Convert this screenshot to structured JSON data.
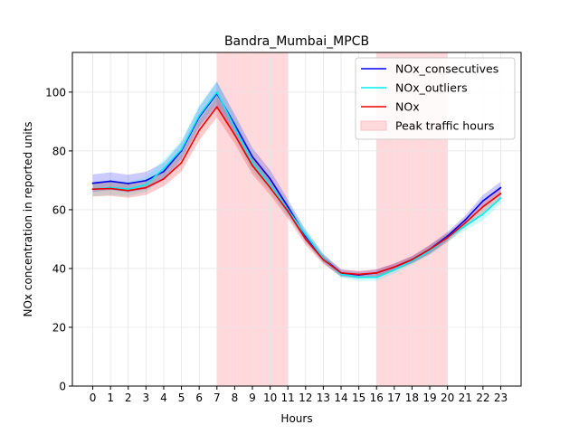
{
  "chart_data": {
    "type": "line",
    "title": "Bandra_Mumbai_MPCB",
    "xlabel": "Hours",
    "ylabel": "NOx concentration in reported units",
    "x": [
      0,
      1,
      2,
      3,
      4,
      5,
      6,
      7,
      8,
      9,
      10,
      11,
      12,
      13,
      14,
      15,
      16,
      17,
      18,
      19,
      20,
      21,
      22,
      23
    ],
    "xlim": [
      -1.15,
      24.15
    ],
    "ylim": [
      0,
      113.5
    ],
    "yticks": [
      0,
      20,
      40,
      60,
      80,
      100
    ],
    "grid": true,
    "legend_position": "top-right",
    "peak_traffic_hours": [
      [
        7,
        11
      ],
      [
        16,
        20
      ]
    ],
    "peak_label": "Peak traffic hours",
    "peak_color": "#ffd9dc",
    "series": [
      {
        "name": "NOx_consecutives",
        "color": "#0000ee",
        "values": [
          69.0,
          69.7,
          68.9,
          69.9,
          73.0,
          80.0,
          91.5,
          99.5,
          89.0,
          78.0,
          70.5,
          61.0,
          51.0,
          43.5,
          38.5,
          37.8,
          38.5,
          40.5,
          43.0,
          46.5,
          51.0,
          56.5,
          63.0,
          67.5
        ],
        "band": [
          3.0,
          3.0,
          3.0,
          3.0,
          3.0,
          3.0,
          3.5,
          4.0,
          3.5,
          3.0,
          3.0,
          2.5,
          2.0,
          1.5,
          1.2,
          1.2,
          1.2,
          1.2,
          1.2,
          1.5,
          1.5,
          1.5,
          2.0,
          2.0
        ]
      },
      {
        "name": "NOx_outliers",
        "color": "#00eeee",
        "values": [
          67.0,
          67.5,
          67.0,
          68.5,
          74.0,
          80.5,
          92.0,
          100.0,
          88.0,
          76.0,
          68.5,
          60.0,
          51.5,
          43.5,
          38.0,
          37.0,
          37.0,
          39.5,
          42.5,
          46.0,
          50.5,
          54.5,
          58.5,
          64.0
        ],
        "band": [
          2.5,
          2.5,
          2.5,
          2.5,
          3.0,
          3.0,
          3.5,
          3.8,
          3.5,
          3.0,
          2.5,
          2.5,
          2.0,
          1.5,
          1.2,
          1.2,
          1.2,
          1.2,
          1.2,
          1.5,
          1.5,
          1.5,
          2.0,
          2.0
        ]
      },
      {
        "name": "NOx",
        "color": "#ee0000",
        "values": [
          67.0,
          67.2,
          66.5,
          67.5,
          70.5,
          76.0,
          87.0,
          95.0,
          85.5,
          75.0,
          67.5,
          59.5,
          50.0,
          43.0,
          38.5,
          38.0,
          38.5,
          40.5,
          43.0,
          46.5,
          50.5,
          55.5,
          61.0,
          65.5
        ],
        "band": [
          2.5,
          2.5,
          2.5,
          2.5,
          2.5,
          3.0,
          3.5,
          3.5,
          3.0,
          3.0,
          2.5,
          2.5,
          2.0,
          1.5,
          1.2,
          1.2,
          1.2,
          1.2,
          1.2,
          1.5,
          1.5,
          1.5,
          2.0,
          2.0
        ]
      }
    ]
  }
}
